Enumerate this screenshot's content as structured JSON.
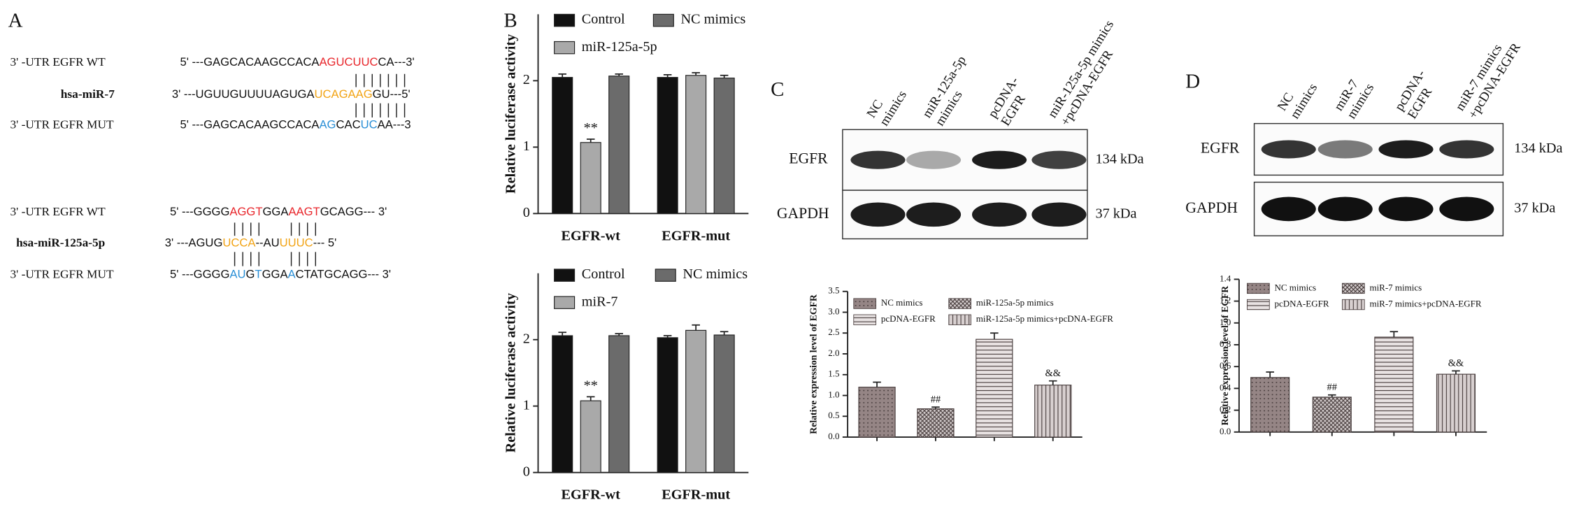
{
  "panel_labels": [
    "A",
    "B",
    "C",
    "D"
  ],
  "sequences": {
    "blocks": [
      {
        "rows": [
          {
            "label": "3' -UTR  EGFR WT",
            "segments": [
              {
                "text": "5' ---GAGCACAAGCCACA",
                "color": "#111111"
              },
              {
                "text": "AGUCUUC",
                "color": "#e8262b"
              },
              {
                "text": "CA---3'",
                "color": "#111111"
              }
            ]
          },
          {
            "label": "hsa-miR-7",
            "segments": [
              {
                "text": "3' ---UGUUGUUUUAGUGA",
                "color": "#111111"
              },
              {
                "text": "UCAGAAG",
                "color": "#f2a416"
              },
              {
                "text": "GU---5'",
                "color": "#111111"
              }
            ]
          },
          {
            "label": "3' -UTR  EGFR MUT",
            "segments": [
              {
                "text": "5' ---GAGCACAAGCCACA",
                "color": "#111111"
              },
              {
                "text": "AG",
                "color": "#2a8fd6"
              },
              {
                "text": "CAC",
                "color": "#111111"
              },
              {
                "text": "UC",
                "color": "#2a8fd6"
              },
              {
                "text": "AA---3",
                "color": "#111111"
              }
            ]
          }
        ]
      },
      {
        "rows": [
          {
            "label": "3' -UTR  EGFR WT",
            "segments": [
              {
                "text": "5' ---GGGG",
                "color": "#111111"
              },
              {
                "text": "AGGT",
                "color": "#e8262b"
              },
              {
                "text": "GGA",
                "color": "#111111"
              },
              {
                "text": "AAGT",
                "color": "#e8262b"
              },
              {
                "text": "GCAGG---  3'",
                "color": "#111111"
              }
            ]
          },
          {
            "label": "hsa-miR-125a-5p",
            "segments": [
              {
                "text": "3' ---AGUG",
                "color": "#111111"
              },
              {
                "text": "UCCA",
                "color": "#f2a416"
              },
              {
                "text": "--AU",
                "color": "#111111"
              },
              {
                "text": "UUUC",
                "color": "#f2a416"
              },
              {
                "text": "--- 5'",
                "color": "#111111"
              }
            ]
          },
          {
            "label": "3' -UTR  EGFR MUT",
            "segments": [
              {
                "text": "5' ---GGGG",
                "color": "#111111"
              },
              {
                "text": "AU",
                "color": "#2a8fd6"
              },
              {
                "text": "G",
                "color": "#111111"
              },
              {
                "text": "T",
                "color": "#2a8fd6"
              },
              {
                "text": "GGA",
                "color": "#111111"
              },
              {
                "text": "A",
                "color": "#2a8fd6"
              },
              {
                "text": "CTATGCAGG---  3'",
                "color": "#111111"
              }
            ]
          }
        ]
      }
    ]
  },
  "blots": [
    {
      "lanes": [
        [
          "NC",
          "mimics"
        ],
        [
          "miR-125a-5p",
          "mimics"
        ],
        [
          "pcDNA-",
          "EGFR"
        ],
        [
          "miR-125a-5p mimics",
          "+pcDNA-EGFR"
        ]
      ],
      "rows": [
        {
          "label": "EGFR",
          "size": "134 kDa"
        },
        {
          "label": "GAPDH",
          "size": "37 kDa"
        }
      ]
    },
    {
      "lanes": [
        [
          "NC",
          "mimics"
        ],
        [
          "miR-7",
          "mimics"
        ],
        [
          "pcDNA-",
          "EGFR"
        ],
        [
          "miR-7 mimics",
          "+pcDNA-EGFR"
        ]
      ],
      "rows": [
        {
          "label": "EGFR",
          "size": "134 kDa"
        },
        {
          "label": "GAPDH",
          "size": "37 kDa"
        }
      ]
    }
  ],
  "chart_data": [
    {
      "type": "bar",
      "y_label": "Relative luciferase activity",
      "categories": [
        "EGFR-wt",
        "EGFR-mut"
      ],
      "series": [
        {
          "name": "Control",
          "color": "#111111",
          "values": [
            2.05,
            2.05
          ],
          "errors": [
            0.05,
            0.04
          ]
        },
        {
          "name": "miR-125a-5p",
          "color": "#a9a9a9",
          "values": [
            1.07,
            2.08
          ],
          "errors": [
            0.05,
            0.04
          ]
        },
        {
          "name": "NC mimics",
          "color": "#6b6b6b",
          "values": [
            2.07,
            2.04
          ],
          "errors": [
            0.03,
            0.04
          ]
        }
      ],
      "annotations": [
        "**"
      ],
      "ylim": [
        0,
        3
      ],
      "yticks": [
        0,
        1,
        2
      ]
    },
    {
      "type": "bar",
      "y_label": "Relative luciferase activity",
      "categories": [
        "EGFR-wt",
        "EGFR-mut"
      ],
      "series": [
        {
          "name": "Control",
          "color": "#111111",
          "values": [
            2.06,
            2.03
          ],
          "errors": [
            0.05,
            0.03
          ]
        },
        {
          "name": "miR-7",
          "color": "#a9a9a9",
          "values": [
            1.08,
            2.14
          ],
          "errors": [
            0.06,
            0.08
          ]
        },
        {
          "name": "NC mimics",
          "color": "#6b6b6b",
          "values": [
            2.06,
            2.07
          ],
          "errors": [
            0.03,
            0.05
          ]
        }
      ],
      "annotations": [
        "**"
      ],
      "ylim": [
        0,
        3
      ],
      "yticks": [
        0,
        1,
        2
      ]
    },
    {
      "type": "bar",
      "y_label": "Relative expression level of EGFR",
      "categories": [
        "NC mimics",
        "miR-125a-5p mimics",
        "pcDNA-EGFR",
        "miR-125a-5p mimics+pcDNA-EGFR"
      ],
      "values": [
        1.2,
        0.68,
        2.35,
        1.25
      ],
      "errors": [
        0.12,
        0.04,
        0.15,
        0.1
      ],
      "colors": [
        "#958585",
        "#d3cccc",
        "#e8e2e2",
        "#d8d0d0"
      ],
      "hatches": [
        "dots",
        "cross",
        "horizontal",
        "vertical"
      ],
      "annotations": [
        "##",
        "&&"
      ],
      "ylim": [
        0,
        3.5
      ],
      "yticks": [
        {
          "value": 0,
          "label": "0.0"
        },
        0.5,
        {
          "value": 1,
          "label": "1.0"
        },
        1.5,
        {
          "value": 2,
          "label": "2.0"
        },
        2.5,
        {
          "value": 3,
          "label": "3.0"
        },
        3.5
      ]
    },
    {
      "type": "bar",
      "y_label": "Relative expression level of EGFR",
      "categories": [
        "NC mimics",
        "miR-7 mimics",
        "pcDNA-EGFR",
        "miR-7 mimics+pcDNA-EGFR"
      ],
      "values": [
        0.5,
        0.32,
        0.87,
        0.53
      ],
      "errors": [
        0.05,
        0.02,
        0.05,
        0.03
      ],
      "colors": [
        "#958585",
        "#d3cccc",
        "#e8e2e2",
        "#d8d0d0"
      ],
      "hatches": [
        "dots",
        "cross",
        "horizontal",
        "vertical"
      ],
      "annotations": [
        "##",
        "&&"
      ],
      "ylim": [
        0,
        1.4
      ],
      "yticks": [
        {
          "value": 0,
          "label": "0.0"
        },
        0.2,
        0.4,
        0.6,
        0.8,
        {
          "value": 1,
          "label": "1.0"
        },
        1.2,
        1.4
      ]
    }
  ]
}
